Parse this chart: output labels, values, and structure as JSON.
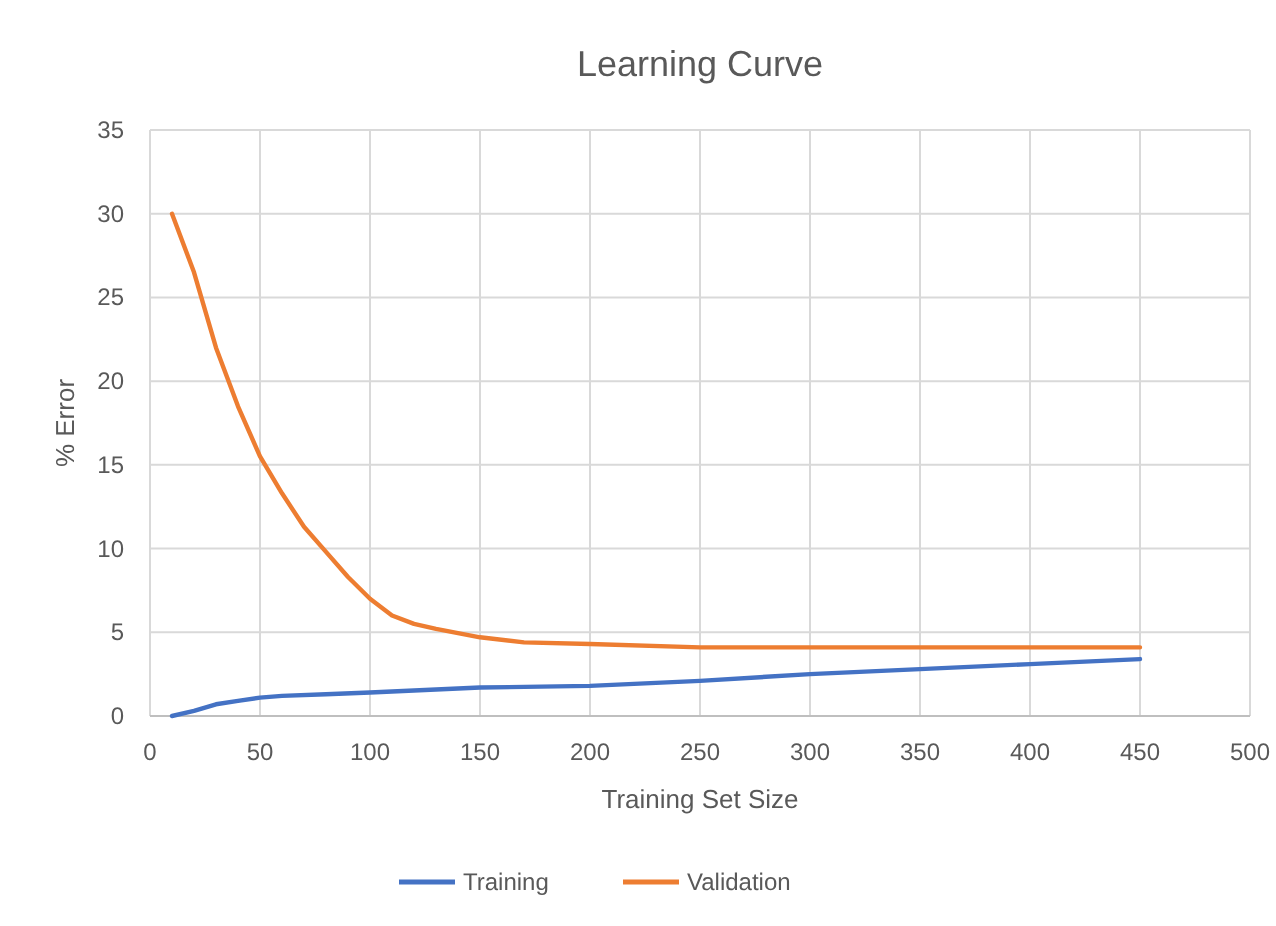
{
  "chart_data": {
    "type": "line",
    "title": "Learning Curve",
    "xlabel": "Training Set Size",
    "ylabel": "% Error",
    "xlim": [
      0,
      500
    ],
    "xticks": [
      0,
      50,
      100,
      150,
      200,
      250,
      300,
      350,
      400,
      450,
      500
    ],
    "ylim": [
      0,
      35
    ],
    "yticks": [
      0,
      5,
      10,
      15,
      20,
      25,
      30,
      35
    ],
    "grid": true,
    "legend": "bottom",
    "series": [
      {
        "name": "Training",
        "color": "#4472c4",
        "x": [
          10,
          20,
          30,
          40,
          50,
          60,
          80,
          100,
          150,
          200,
          250,
          300,
          350,
          400,
          450
        ],
        "values": [
          0,
          0.3,
          0.7,
          0.9,
          1.1,
          1.2,
          1.3,
          1.4,
          1.7,
          1.8,
          2.1,
          2.5,
          2.8,
          3.1,
          3.4
        ]
      },
      {
        "name": "Validation",
        "color": "#ed7d31",
        "x": [
          10,
          20,
          30,
          40,
          50,
          60,
          70,
          80,
          90,
          100,
          110,
          120,
          130,
          150,
          170,
          200,
          250,
          300,
          350,
          400,
          450
        ],
        "values": [
          30,
          26.5,
          22,
          18.5,
          15.5,
          13.3,
          11.3,
          9.8,
          8.3,
          7,
          6,
          5.5,
          5.2,
          4.7,
          4.4,
          4.3,
          4.1,
          4.1,
          4.1,
          4.1,
          4.1
        ]
      }
    ]
  }
}
